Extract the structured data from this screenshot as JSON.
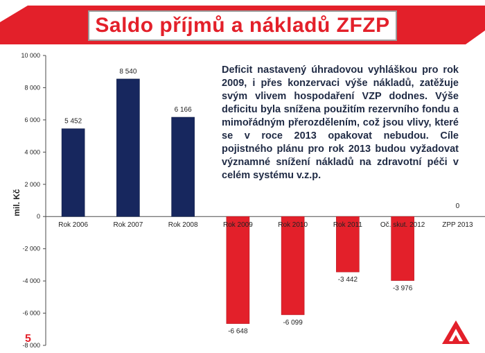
{
  "title": "Saldo příjmů a nákladů ZFZP",
  "note": "Deficit nastavený úhradovou vyhláškou pro rok 2009, i přes konzervaci výše nákladů, zatěžuje svým vlivem hospodaření VZP dodnes. Výše deficitu byla snížena použitím rezervního fondu a mimořádným přerozdělením, což jsou vlivy, které se v roce 2013 opakovat nebudou. Cíle pojistného plánu pro rok 2013 budou vyžadovat významné snížení nákladů na zdravotní péči v celém systému v.z.p.",
  "page_number": "5",
  "colors": {
    "positive": "#17275e",
    "negative": "#e3202a",
    "accent": "#e3202a"
  },
  "chart_data": {
    "type": "bar",
    "categories": [
      "Rok 2006",
      "Rok 2007",
      "Rok 2008",
      "Rok 2009",
      "Rok 2010",
      "Rok 2011",
      "Oč. skut. 2012",
      "ZPP 2013"
    ],
    "values": [
      5452,
      8540,
      6166,
      -6648,
      -6099,
      -3442,
      -3976,
      0
    ],
    "value_labels": [
      "5 452",
      "8 540",
      "6 166",
      "-6 648",
      "-6 099",
      "-3 442",
      "-3 976",
      "0"
    ],
    "ylabel": "mil. Kč",
    "ylim": [
      -8000,
      10000
    ],
    "yticks": [
      10000,
      8000,
      6000,
      4000,
      2000,
      0,
      -2000,
      -4000,
      -6000,
      -8000
    ],
    "ytick_labels": [
      "10 000",
      "8 000",
      "6 000",
      "4 000",
      "2 000",
      "0",
      "-2 000",
      "-4 000",
      "-6 000",
      "-8 000"
    ],
    "grid": false,
    "legend": "none"
  }
}
